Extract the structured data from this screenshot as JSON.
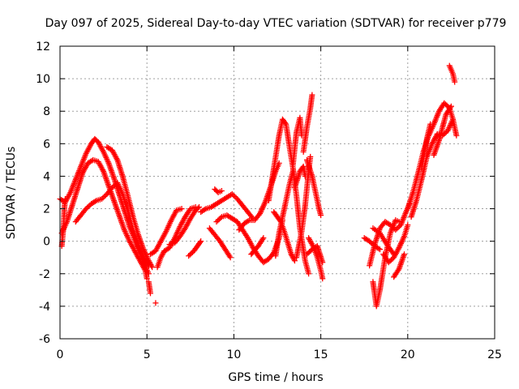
{
  "chart_data": {
    "type": "scatter",
    "title": "Day 097 of 2025, Sidereal Day-to-day VTEC variation (SDTVAR) for receiver p779",
    "xlabel": "GPS time / hours",
    "ylabel": "SDTVAR / TECUs",
    "xlim": [
      0,
      25
    ],
    "ylim": [
      -6,
      12
    ],
    "xticks": [
      0,
      5,
      10,
      15,
      20,
      25
    ],
    "yticks": [
      -6,
      -4,
      -2,
      0,
      2,
      4,
      6,
      8,
      10,
      12
    ],
    "grid": true,
    "marker": "+",
    "series": [
      {
        "name": "SDTVAR",
        "color": "#ff0000",
        "tracks": [
          [
            [
              0.0,
              2.6
            ],
            [
              0.3,
              2.4
            ],
            [
              0.6,
              3.0
            ],
            [
              0.9,
              3.8
            ],
            [
              1.2,
              4.6
            ],
            [
              1.5,
              5.4
            ],
            [
              1.8,
              6.0
            ],
            [
              2.0,
              6.3
            ],
            [
              2.2,
              6.1
            ],
            [
              2.5,
              5.5
            ],
            [
              2.8,
              4.8
            ],
            [
              3.1,
              3.9
            ],
            [
              3.4,
              2.9
            ],
            [
              3.7,
              1.9
            ],
            [
              4.0,
              0.9
            ],
            [
              4.3,
              0.1
            ],
            [
              4.6,
              -0.7
            ],
            [
              4.9,
              -1.5
            ],
            [
              5.1,
              -2.0
            ]
          ],
          [
            [
              0.1,
              0.5
            ],
            [
              0.4,
              1.2
            ],
            [
              0.7,
              2.2
            ],
            [
              1.0,
              3.2
            ],
            [
              1.3,
              4.2
            ],
            [
              1.6,
              4.8
            ],
            [
              1.9,
              5.0
            ],
            [
              2.2,
              4.9
            ],
            [
              2.5,
              4.3
            ],
            [
              2.8,
              3.4
            ],
            [
              3.1,
              2.5
            ],
            [
              3.4,
              1.6
            ],
            [
              3.7,
              0.7
            ],
            [
              4.0,
              0.0
            ],
            [
              4.3,
              -0.6
            ],
            [
              4.6,
              -1.2
            ],
            [
              4.9,
              -1.8
            ],
            [
              5.0,
              -2.3
            ]
          ],
          [
            [
              0.9,
              1.2
            ],
            [
              1.2,
              1.6
            ],
            [
              1.5,
              2.0
            ],
            [
              1.8,
              2.3
            ],
            [
              2.1,
              2.5
            ],
            [
              2.4,
              2.6
            ],
            [
              2.7,
              2.9
            ],
            [
              3.0,
              3.3
            ],
            [
              3.3,
              3.6
            ],
            [
              3.6,
              2.9
            ],
            [
              3.9,
              1.9
            ],
            [
              4.2,
              0.7
            ],
            [
              4.5,
              -0.3
            ],
            [
              4.8,
              -1.0
            ],
            [
              5.1,
              -1.5
            ]
          ],
          [
            [
              2.7,
              5.8
            ],
            [
              3.0,
              5.6
            ],
            [
              3.3,
              5.0
            ],
            [
              3.6,
              4.0
            ],
            [
              3.9,
              2.8
            ],
            [
              4.2,
              1.5
            ],
            [
              4.5,
              0.4
            ],
            [
              4.8,
              -0.5
            ],
            [
              5.1,
              -1.2
            ],
            [
              5.3,
              -1.6
            ]
          ],
          [
            [
              0.1,
              -0.3
            ],
            [
              0.2,
              0.8
            ],
            [
              0.25,
              2.0
            ],
            [
              0.3,
              2.6
            ]
          ],
          [
            [
              5.2,
              -0.8
            ],
            [
              5.5,
              -0.6
            ],
            [
              5.8,
              0.0
            ],
            [
              6.1,
              0.6
            ],
            [
              6.4,
              1.3
            ],
            [
              6.7,
              1.9
            ],
            [
              7.0,
              2.0
            ]
          ],
          [
            [
              5.6,
              -1.6
            ],
            [
              5.8,
              -1.0
            ],
            [
              6.0,
              -0.6
            ],
            [
              6.3,
              -0.4
            ],
            [
              6.6,
              0.2
            ],
            [
              6.9,
              0.9
            ],
            [
              7.2,
              1.5
            ],
            [
              7.5,
              2.0
            ],
            [
              7.8,
              2.1
            ]
          ],
          [
            [
              6.3,
              -0.2
            ],
            [
              6.6,
              -0.1
            ],
            [
              6.9,
              0.3
            ],
            [
              7.2,
              0.8
            ],
            [
              7.5,
              1.4
            ],
            [
              7.8,
              1.9
            ],
            [
              8.0,
              2.1
            ]
          ],
          [
            [
              7.4,
              -0.9
            ],
            [
              7.7,
              -0.6
            ],
            [
              7.9,
              -0.3
            ],
            [
              8.1,
              0.0
            ]
          ],
          [
            [
              5.1,
              -2.5
            ],
            [
              5.2,
              -3.2
            ]
          ],
          [
            [
              5.5,
              -3.8
            ]
          ],
          [
            [
              8.1,
              1.8
            ],
            [
              8.4,
              2.0
            ],
            [
              8.7,
              2.1
            ],
            [
              9.0,
              2.3
            ],
            [
              9.3,
              2.5
            ],
            [
              9.6,
              2.7
            ],
            [
              9.9,
              2.9
            ],
            [
              10.2,
              2.6
            ],
            [
              10.5,
              2.2
            ],
            [
              10.8,
              1.8
            ],
            [
              11.1,
              1.4
            ]
          ],
          [
            [
              8.6,
              0.8
            ],
            [
              8.9,
              0.4
            ],
            [
              9.2,
              0.0
            ],
            [
              9.5,
              -0.5
            ],
            [
              9.8,
              -1.0
            ]
          ],
          [
            [
              9.0,
              1.2
            ],
            [
              9.3,
              1.5
            ],
            [
              9.6,
              1.6
            ],
            [
              9.9,
              1.4
            ],
            [
              10.2,
              1.2
            ],
            [
              10.5,
              0.7
            ],
            [
              10.8,
              0.2
            ],
            [
              11.1,
              -0.4
            ],
            [
              11.4,
              -0.9
            ],
            [
              11.7,
              -1.3
            ],
            [
              12.0,
              -1.1
            ],
            [
              12.3,
              -0.7
            ],
            [
              12.6,
              0.2
            ],
            [
              12.8,
              1.3
            ]
          ],
          [
            [
              8.9,
              3.2
            ],
            [
              9.1,
              3.0
            ],
            [
              9.3,
              3.1
            ]
          ],
          [
            [
              10.3,
              0.7
            ],
            [
              10.6,
              1.1
            ],
            [
              10.9,
              1.3
            ],
            [
              11.2,
              1.3
            ],
            [
              11.5,
              1.7
            ],
            [
              11.8,
              2.4
            ],
            [
              12.1,
              3.3
            ],
            [
              12.4,
              4.3
            ],
            [
              12.6,
              4.8
            ]
          ],
          [
            [
              11.0,
              -0.8
            ],
            [
              11.4,
              -0.3
            ],
            [
              11.7,
              0.2
            ]
          ],
          [
            [
              12.0,
              2.5
            ],
            [
              12.3,
              4.5
            ],
            [
              12.6,
              6.5
            ],
            [
              12.8,
              7.5
            ],
            [
              13.0,
              7.2
            ],
            [
              13.2,
              5.8
            ],
            [
              13.4,
              4.5
            ],
            [
              13.6,
              2.8
            ],
            [
              13.8,
              0.8
            ],
            [
              14.1,
              -1.2
            ],
            [
              14.3,
              -2.0
            ]
          ],
          [
            [
              12.3,
              1.8
            ],
            [
              12.5,
              1.5
            ],
            [
              12.7,
              1.2
            ],
            [
              12.9,
              0.6
            ],
            [
              13.1,
              -0.1
            ],
            [
              13.3,
              -0.8
            ],
            [
              13.5,
              -1.2
            ]
          ],
          [
            [
              12.4,
              -0.9
            ],
            [
              12.6,
              0.5
            ],
            [
              12.9,
              2.0
            ],
            [
              13.2,
              3.5
            ],
            [
              13.4,
              4.3
            ]
          ],
          [
            [
              13.4,
              4.7
            ],
            [
              13.6,
              6.7
            ],
            [
              13.8,
              7.6
            ],
            [
              13.9,
              6.5
            ]
          ],
          [
            [
              13.5,
              3.3
            ],
            [
              13.8,
              4.3
            ],
            [
              14.0,
              4.6
            ],
            [
              14.1,
              4.0
            ]
          ],
          [
            [
              13.6,
              -1.0
            ],
            [
              13.9,
              0.6
            ],
            [
              14.1,
              2.2
            ],
            [
              14.3,
              4.3
            ],
            [
              14.4,
              5.2
            ]
          ],
          [
            [
              14.0,
              5.5
            ],
            [
              14.2,
              7.0
            ],
            [
              14.4,
              8.2
            ],
            [
              14.5,
              9.0
            ]
          ],
          [
            [
              14.2,
              5.0
            ],
            [
              14.5,
              4.0
            ],
            [
              14.7,
              3.0
            ],
            [
              14.9,
              2.0
            ],
            [
              15.0,
              1.6
            ]
          ],
          [
            [
              14.3,
              0.2
            ],
            [
              14.6,
              -0.4
            ],
            [
              14.8,
              -1.0
            ],
            [
              15.0,
              -1.8
            ],
            [
              15.1,
              -2.3
            ]
          ],
          [
            [
              14.2,
              -0.8
            ],
            [
              14.5,
              -0.5
            ],
            [
              14.8,
              -0.3
            ],
            [
              15.1,
              -1.3
            ]
          ],
          [
            [
              17.5,
              0.2
            ],
            [
              17.8,
              0.0
            ],
            [
              18.1,
              -0.3
            ],
            [
              18.4,
              -0.5
            ]
          ],
          [
            [
              17.8,
              -1.5
            ],
            [
              18.1,
              -0.2
            ],
            [
              18.4,
              0.8
            ],
            [
              18.7,
              1.2
            ],
            [
              19.0,
              1.0
            ],
            [
              19.3,
              0.7
            ],
            [
              19.6,
              1.0
            ],
            [
              19.9,
              1.8
            ],
            [
              20.1,
              2.3
            ]
          ],
          [
            [
              18.0,
              -2.5
            ],
            [
              18.2,
              -4.0
            ],
            [
              18.4,
              -3.0
            ],
            [
              18.7,
              -1.0
            ],
            [
              19.0,
              0.5
            ],
            [
              19.3,
              1.3
            ],
            [
              19.5,
              1.2
            ]
          ],
          [
            [
              18.6,
              -0.8
            ],
            [
              18.9,
              -1.3
            ],
            [
              19.2,
              -1.0
            ],
            [
              19.5,
              -0.4
            ],
            [
              19.8,
              0.3
            ],
            [
              20.0,
              1.0
            ]
          ],
          [
            [
              19.2,
              -2.2
            ],
            [
              19.5,
              -1.7
            ],
            [
              19.8,
              -0.8
            ]
          ],
          [
            [
              18.0,
              0.8
            ],
            [
              18.4,
              0.5
            ],
            [
              18.8,
              -0.2
            ],
            [
              19.2,
              -0.8
            ]
          ],
          [
            [
              20.0,
              2.0
            ],
            [
              20.3,
              3.0
            ],
            [
              20.6,
              4.2
            ],
            [
              20.9,
              5.5
            ],
            [
              21.2,
              6.5
            ],
            [
              21.5,
              7.2
            ],
            [
              21.8,
              8.0
            ],
            [
              22.1,
              8.5
            ],
            [
              22.4,
              8.2
            ],
            [
              22.6,
              7.5
            ]
          ],
          [
            [
              20.2,
              1.5
            ],
            [
              20.5,
              2.5
            ],
            [
              20.8,
              3.8
            ],
            [
              21.1,
              5.2
            ],
            [
              21.4,
              6.0
            ],
            [
              21.7,
              6.6
            ],
            [
              22.0,
              6.5
            ],
            [
              22.3,
              6.8
            ],
            [
              22.6,
              7.5
            ],
            [
              22.8,
              6.5
            ]
          ],
          [
            [
              20.8,
              4.5
            ],
            [
              21.1,
              6.3
            ],
            [
              21.3,
              7.2
            ]
          ],
          [
            [
              21.5,
              5.3
            ],
            [
              21.8,
              6.2
            ],
            [
              22.2,
              7.8
            ],
            [
              22.5,
              8.3
            ]
          ],
          [
            [
              22.4,
              10.8
            ],
            [
              22.6,
              10.3
            ],
            [
              22.7,
              9.8
            ]
          ]
        ]
      }
    ]
  }
}
